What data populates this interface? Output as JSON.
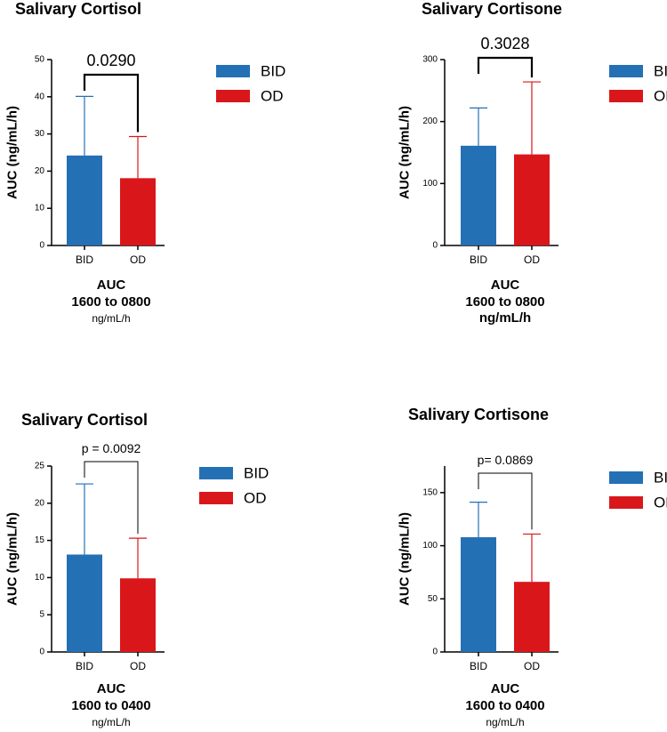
{
  "colors": {
    "bid": "#2470B5",
    "od": "#D9171B"
  },
  "legend": {
    "bid": "BID",
    "od": "OD"
  },
  "chart_data": [
    {
      "type": "bar",
      "title": "Salivary Cortisol",
      "ylabel": "AUC (ng/mL/h)",
      "ylim": [
        0,
        50
      ],
      "yticks": [
        0,
        10,
        20,
        30,
        40,
        50
      ],
      "categories": [
        "BID",
        "OD"
      ],
      "values": [
        24.2,
        18.1
      ],
      "error_upper": [
        40.1,
        29.3
      ],
      "p_value": "0.0290",
      "xlabel_lines": [
        "AUC",
        "1600 to 0800"
      ],
      "xlabel_unit": "ng/mL/h",
      "unit_bold": false
    },
    {
      "type": "bar",
      "title": "Salivary Cortisone",
      "ylabel": "AUC (ng/mL/h)",
      "ylim": [
        0,
        300
      ],
      "yticks": [
        0,
        100,
        200,
        300
      ],
      "categories": [
        "BID",
        "OD"
      ],
      "values": [
        161,
        147
      ],
      "error_upper": [
        222,
        264
      ],
      "p_value": "0.3028",
      "xlabel_lines": [
        "AUC",
        "1600 to 0800"
      ],
      "xlabel_unit": "ng/mL/h",
      "unit_bold": true
    },
    {
      "type": "bar",
      "title": "Salivary Cortisol",
      "ylabel": "AUC (ng/mL/h)",
      "ylim": [
        0,
        25
      ],
      "yticks": [
        0,
        5,
        10,
        15,
        20,
        25
      ],
      "categories": [
        "BID",
        "OD"
      ],
      "values": [
        13.1,
        9.9
      ],
      "error_upper": [
        22.6,
        15.3
      ],
      "p_value": "p = 0.0092",
      "xlabel_lines": [
        "AUC",
        "1600 to 0400"
      ],
      "xlabel_unit": "ng/mL/h",
      "unit_bold": false
    },
    {
      "type": "bar",
      "title": "Salivary Cortisone",
      "ylabel": "AUC (ng/mL/h)",
      "ylim": [
        0,
        175
      ],
      "yticks": [
        0,
        50,
        100,
        150
      ],
      "categories": [
        "BID",
        "OD"
      ],
      "values": [
        108,
        66
      ],
      "error_upper": [
        141,
        111
      ],
      "p_value": "p= 0.0869",
      "xlabel_lines": [
        "AUC",
        "1600 to 0400"
      ],
      "xlabel_unit": "ng/mL/h",
      "unit_bold": false
    }
  ]
}
